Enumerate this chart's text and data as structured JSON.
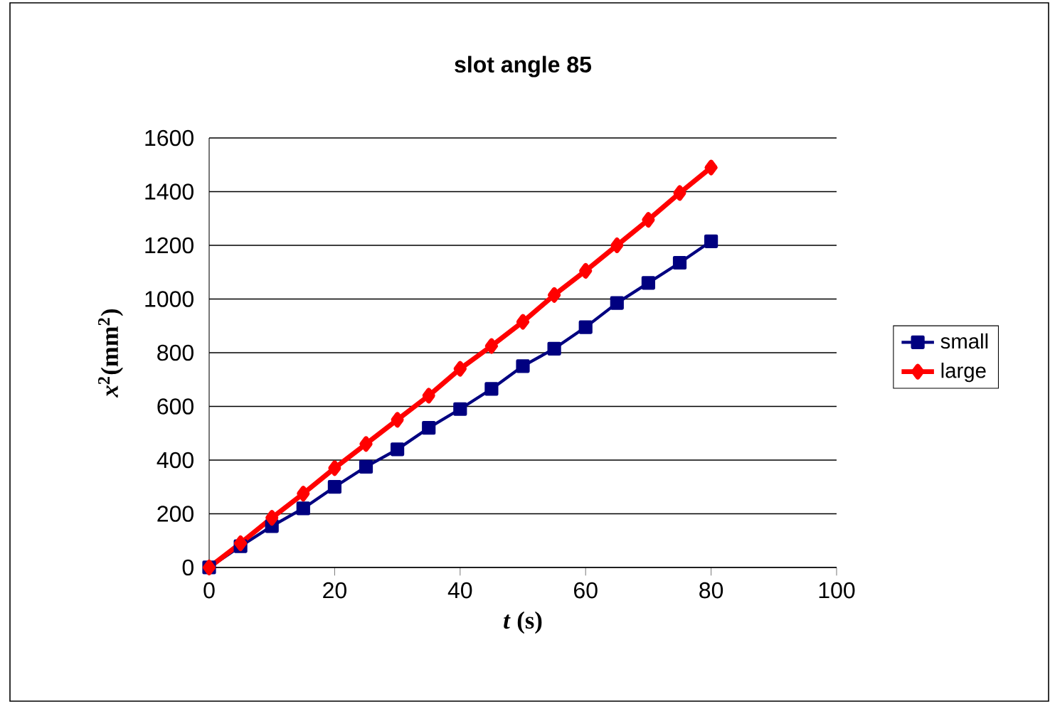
{
  "chart_data": {
    "type": "line",
    "title": "slot angle 85",
    "xlabel": "*t* (s)",
    "ylabel": "*x*$^{2}$(mm$^{2}$)",
    "x": [
      0,
      5,
      10,
      15,
      20,
      25,
      30,
      35,
      40,
      45,
      50,
      55,
      60,
      65,
      70,
      75,
      80
    ],
    "series": [
      {
        "name": "small",
        "color": "#000080",
        "marker": "square",
        "values": [
          0,
          79,
          154,
          220,
          300,
          375,
          440,
          520,
          590,
          665,
          750,
          815,
          895,
          985,
          1060,
          1135,
          1215
        ]
      },
      {
        "name": "large",
        "color": "#ff0000",
        "marker": "diamond",
        "values": [
          0,
          90,
          185,
          275,
          370,
          460,
          550,
          640,
          740,
          825,
          915,
          1015,
          1105,
          1200,
          1295,
          1395,
          1490
        ]
      }
    ],
    "xlim": [
      0,
      100
    ],
    "xticks": [
      0,
      20,
      40,
      60,
      80,
      100
    ],
    "ylim": [
      0,
      1600
    ],
    "yticks": [
      0,
      200,
      400,
      600,
      800,
      1000,
      1200,
      1400,
      1600
    ],
    "grid": "y",
    "legend": "right",
    "line_style": "solid"
  }
}
